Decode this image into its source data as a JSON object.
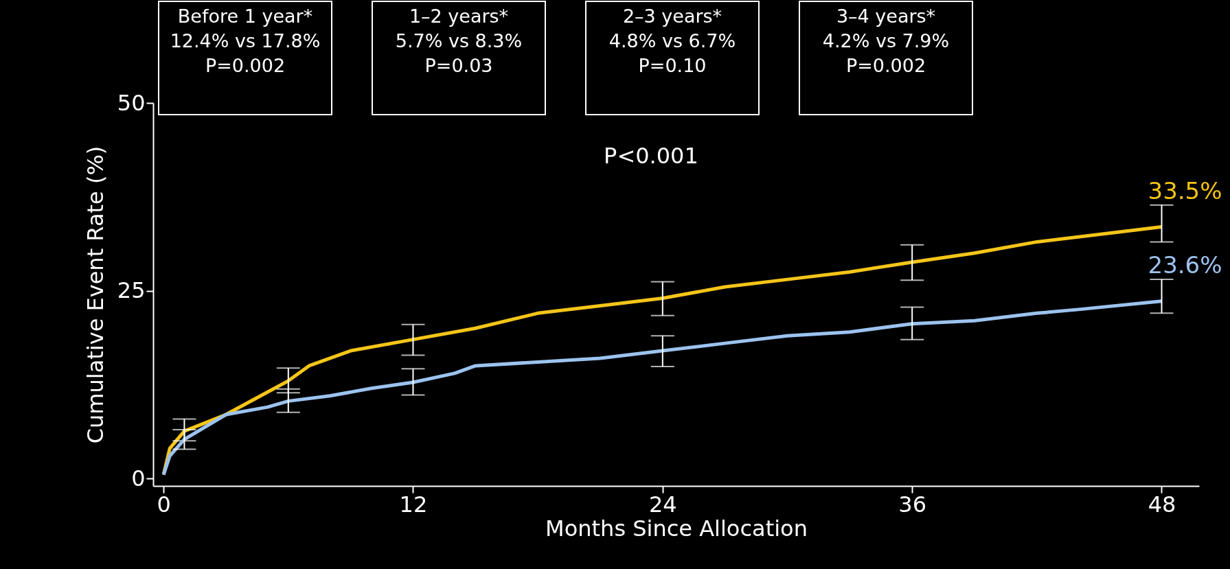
{
  "chart_data": {
    "type": "line",
    "xlabel": "Months Since Allocation",
    "ylabel": "Cumulative Event Rate (%)",
    "xlim": [
      -0.5,
      49.8
    ],
    "ylim": [
      -1,
      50
    ],
    "xticks": [
      0,
      12,
      24,
      36,
      48
    ],
    "yticks": [
      0,
      25,
      50
    ],
    "grid": false,
    "marker": "none",
    "line_style": "solid",
    "series": [
      {
        "color": "#f5c518",
        "x": [
          0,
          0.3,
          1,
          3,
          5,
          6,
          7,
          9,
          12,
          15,
          18,
          21,
          24,
          27,
          30,
          33,
          36,
          39,
          42,
          45,
          48
        ],
        "values": [
          0.5,
          4,
          6.3,
          8.5,
          11.5,
          13,
          15,
          17,
          18.5,
          20,
          22,
          23,
          24,
          25.5,
          26.5,
          27.5,
          28.8,
          30,
          31.5,
          32.5,
          33.5
        ],
        "errors": [
          null,
          null,
          [
            5,
            7.9
          ],
          null,
          null,
          [
            11.4,
            14.7
          ],
          null,
          null,
          [
            16.4,
            20.5
          ],
          null,
          null,
          null,
          [
            21.7,
            26.2
          ],
          null,
          null,
          null,
          [
            26.4,
            31.1
          ],
          null,
          null,
          null,
          [
            31.5,
            36.4
          ]
        ]
      },
      {
        "color": "#9cc3ef",
        "x": [
          0,
          0.3,
          1,
          3,
          5,
          6,
          8,
          10,
          12,
          14,
          15,
          18,
          21,
          24,
          27,
          30,
          33,
          36,
          39,
          42,
          44,
          48
        ],
        "values": [
          0.5,
          3,
          5.2,
          8.5,
          9.5,
          10.3,
          11,
          12,
          12.8,
          14,
          15,
          15.5,
          16,
          17,
          18,
          19,
          19.5,
          20.6,
          21,
          22,
          22.5,
          23.6
        ],
        "errors": [
          null,
          null,
          [
            3.9,
            6.5
          ],
          null,
          null,
          [
            8.8,
            11.9
          ],
          null,
          null,
          [
            11.1,
            14.6
          ],
          null,
          null,
          null,
          null,
          [
            14.9,
            19.0
          ],
          null,
          null,
          null,
          [
            18.5,
            22.8
          ],
          null,
          null,
          null,
          [
            22.0,
            26.5
          ]
        ]
      }
    ],
    "annotations": [
      "Before 1 year*\n12.4% vs 17.8%\nP=0.002",
      "1–2 years*\n5.7% vs 8.3%\nP=0.03",
      "2–3 years*\n4.8% vs 6.7%\nP=0.10",
      "3–4 years*\n4.2% vs 7.9%\nP=0.002",
      "P<0.001",
      {
        "text": "33.5%",
        "x": 48,
        "y": 33.5
      },
      {
        "text": "23.6%",
        "x": 48,
        "y": 23.6
      }
    ]
  }
}
